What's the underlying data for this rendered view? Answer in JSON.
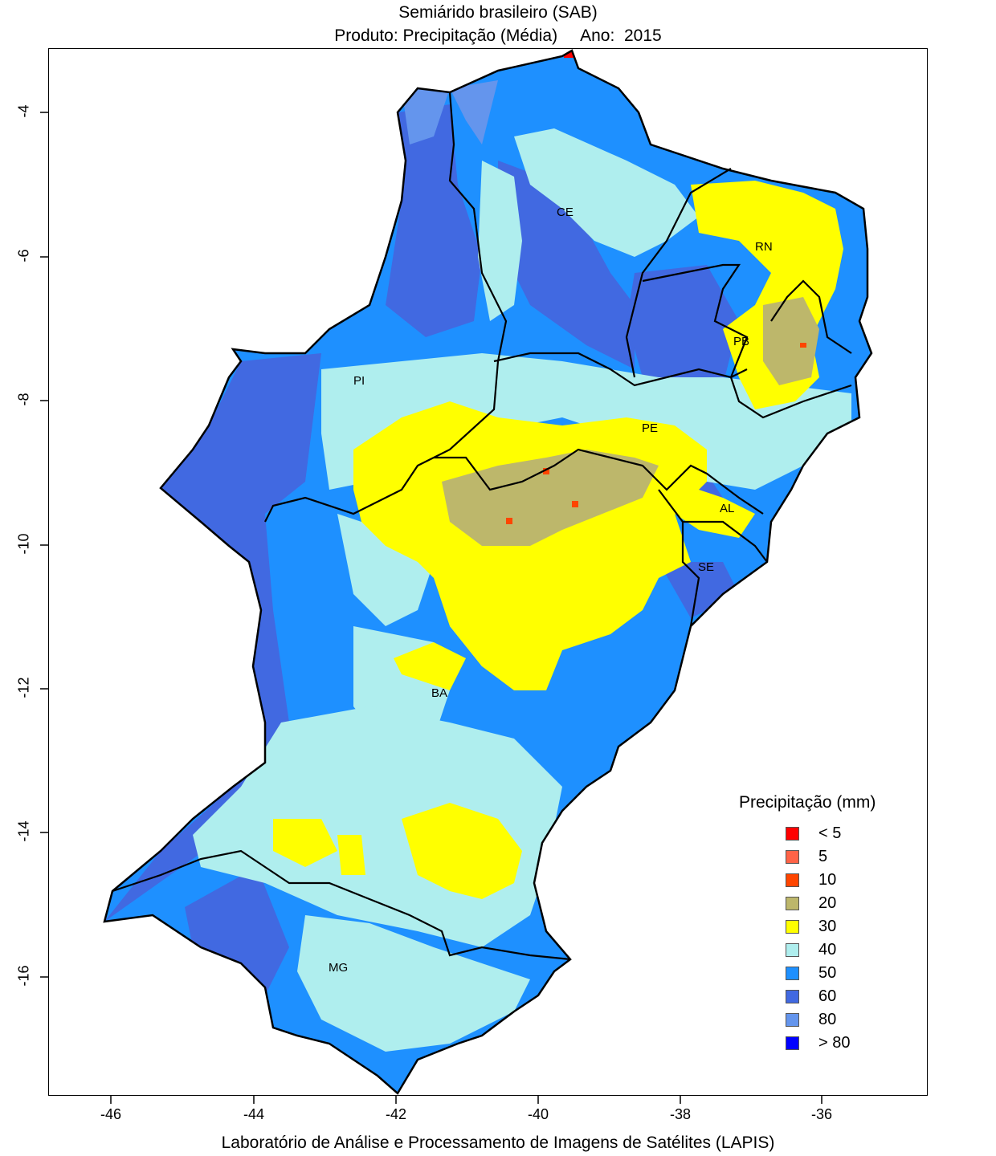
{
  "title": {
    "line1": "Semiárido brasileiro (SAB)",
    "product": "Produto: Precipitação (Média)",
    "year": "Ano:  2015"
  },
  "axes": {
    "x_ticks": [
      "-46",
      "-44",
      "-42",
      "-40",
      "-38",
      "-36"
    ],
    "y_ticks": [
      "-4",
      "-6",
      "-8",
      "-10",
      "-12",
      "-14",
      "-16"
    ]
  },
  "states": [
    "CE",
    "RN",
    "PB",
    "PI",
    "PE",
    "AL",
    "SE",
    "BA",
    "MG"
  ],
  "legend": {
    "title": "Precipitação (mm)",
    "items": [
      {
        "label": "< 5",
        "color": "#ff0000"
      },
      {
        "label": "5",
        "color": "#ff6347"
      },
      {
        "label": "10",
        "color": "#ff4500"
      },
      {
        "label": "20",
        "color": "#bdb76b"
      },
      {
        "label": "30",
        "color": "#ffff00"
      },
      {
        "label": "40",
        "color": "#afeeee"
      },
      {
        "label": "50",
        "color": "#1e90ff"
      },
      {
        "label": "60",
        "color": "#4169e1"
      },
      {
        "label": "80",
        "color": "#6495ed"
      },
      {
        "label": "> 80",
        "color": "#0000ff"
      }
    ]
  },
  "footer": "Laboratório de Análise e Processamento de Imagens de Satélites (LAPIS)"
}
